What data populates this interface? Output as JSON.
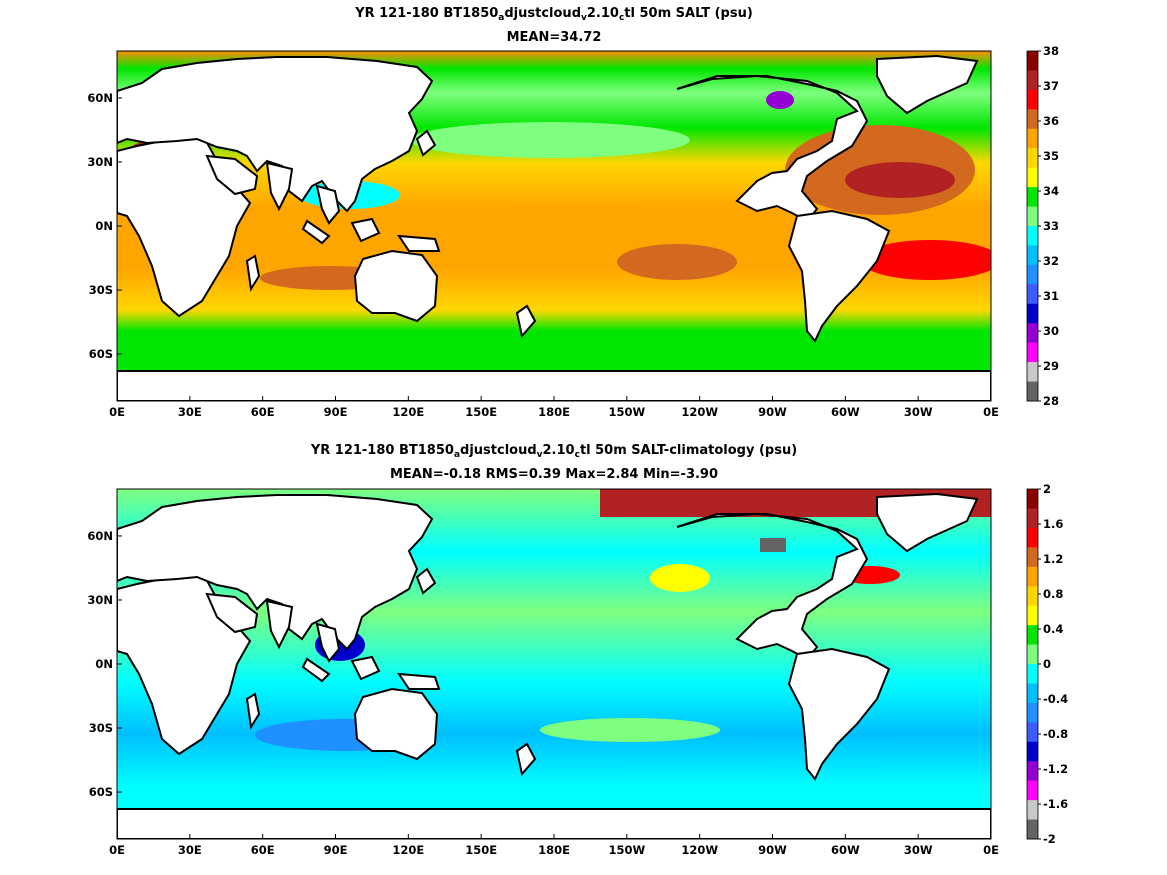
{
  "panels": [
    {
      "id": "top",
      "title_parts": [
        "YR 121-180 BT1850",
        "a",
        "djustcloud",
        "v",
        "2.10",
        "c",
        "tl 50m SALT (psu)"
      ],
      "subtitle": "MEAN=34.72",
      "x_ticks": [
        "0E",
        "30E",
        "60E",
        "90E",
        "120E",
        "150E",
        "180E",
        "150W",
        "120W",
        "90W",
        "60W",
        "30W",
        "0E"
      ],
      "y_ticks": [
        "60N",
        "30N",
        "0N",
        "30S",
        "60S"
      ],
      "colorbar_labels": [
        "38",
        "37",
        "36",
        "35",
        "34",
        "33",
        "32",
        "31",
        "30",
        "29",
        "28"
      ],
      "colorbar_colors": [
        "#8b0000",
        "#b22222",
        "#ff0000",
        "#d2691e",
        "#ffa500",
        "#ffd700",
        "#ffff00",
        "#00e600",
        "#7fff7f",
        "#00ffff",
        "#00bfff",
        "#1e90ff",
        "#3c5cff",
        "#0000cd",
        "#9400d3",
        "#ff00ff",
        "#c8c8c8",
        "#646464"
      ]
    },
    {
      "id": "bottom",
      "title_parts": [
        "YR 121-180 BT1850",
        "a",
        "djustcloud",
        "v",
        "2.10",
        "c",
        "tl 50m SALT-climatology (psu)"
      ],
      "subtitle": "MEAN=-0.18   RMS=0.39   Max=2.84   Min=-3.90",
      "x_ticks": [
        "0E",
        "30E",
        "60E",
        "90E",
        "120E",
        "150E",
        "180E",
        "150W",
        "120W",
        "90W",
        "60W",
        "30W",
        "0E"
      ],
      "y_ticks": [
        "60N",
        "30N",
        "0N",
        "30S",
        "60S"
      ],
      "colorbar_labels": [
        "2",
        "1.6",
        "1.2",
        "0.8",
        "0.4",
        "0",
        "-0.4",
        "-0.8",
        "-1.2",
        "-1.6",
        "-2"
      ],
      "colorbar_colors": [
        "#8b0000",
        "#b22222",
        "#ff0000",
        "#d2691e",
        "#ffa500",
        "#ffd700",
        "#ffff00",
        "#00e600",
        "#7fff7f",
        "#00ffff",
        "#00bfff",
        "#1e90ff",
        "#3c5cff",
        "#0000cd",
        "#9400d3",
        "#ff00ff",
        "#c8c8c8",
        "#646464"
      ]
    }
  ]
}
